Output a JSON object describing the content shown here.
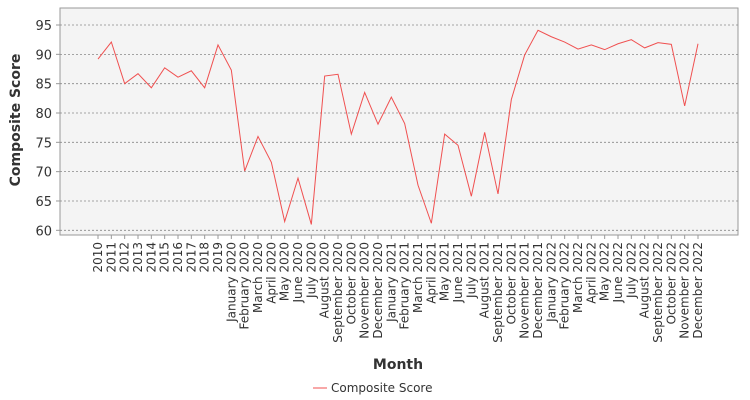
{
  "chart_data": {
    "type": "line",
    "x_label": "Month",
    "y_label": "Composite Score",
    "categories": [
      "2010",
      "2011",
      "2012",
      "2013",
      "2014",
      "2015",
      "2016",
      "2017",
      "2018",
      "2019",
      "January 2020",
      "February 2020",
      "March 2020",
      "April 2020",
      "May 2020",
      "June 2020",
      "July 2020",
      "August 2020",
      "September 2020",
      "October 2020",
      "November 2020",
      "December 2020",
      "January 2021",
      "February 2021",
      "March 2021",
      "April 2021",
      "May 2021",
      "June 2021",
      "July 2021",
      "August 2021",
      "September 2021",
      "October 2021",
      "November 2021",
      "December 2021",
      "January 2022",
      "February 2022",
      "March 2022",
      "April 2022",
      "May 2022",
      "June 2022",
      "July 2022",
      "August 2022",
      "September 2022",
      "October 2022",
      "November 2022",
      "December 2022"
    ],
    "series": [
      {
        "name": "Composite Score",
        "color": "#f05050",
        "values": [
          89.2,
          92.1,
          85,
          86.7,
          84.3,
          87.7,
          86.1,
          87.2,
          84.3,
          91.6,
          87.3,
          70.1,
          76,
          71.6,
          61.5,
          68.9,
          61,
          86.3,
          86.6,
          76.4,
          83.5,
          78.1,
          82.7,
          78.2,
          67.7,
          61.2,
          76.4,
          74.5,
          65.8,
          76.7,
          66.2,
          82.3,
          89.9,
          94.1,
          93,
          92.1,
          90.9,
          91.6,
          90.8,
          91.8,
          92.5,
          91.1,
          92,
          91.7,
          81.2,
          91.8
        ]
      }
    ],
    "ylim": [
      59.2,
      97.9
    ],
    "yticks": [
      60,
      65,
      70,
      75,
      80,
      85,
      90,
      95
    ],
    "grid": true,
    "legend": "bottom"
  }
}
